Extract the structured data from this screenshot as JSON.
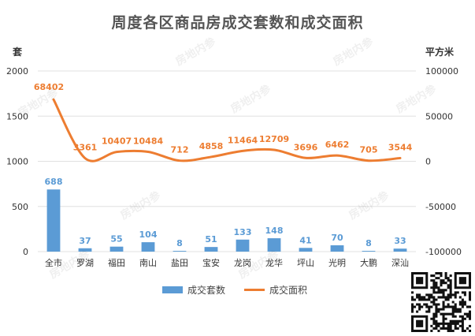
{
  "title": "周度各区商品房成交套数和成交面积",
  "left_unit": "套",
  "right_unit": "平方米",
  "watermark_text": "房地内参",
  "colors": {
    "bar": "#5B9BD5",
    "line": "#ED7D31",
    "bar_label": "#5B9BD5",
    "line_label": "#ED7D31",
    "axis_text": "#333333",
    "grid": "#E0E0E0"
  },
  "chart_data": {
    "type": "bar",
    "categories": [
      "全市",
      "罗湖",
      "福田",
      "南山",
      "盐田",
      "宝安",
      "龙岗",
      "龙华",
      "坪山",
      "光明",
      "大鹏",
      "深汕"
    ],
    "series": [
      {
        "name": "成交套数",
        "type": "bar",
        "axis": "left",
        "values": [
          688,
          37,
          55,
          104,
          8,
          51,
          133,
          148,
          41,
          70,
          8,
          33
        ]
      },
      {
        "name": "成交面积",
        "type": "line",
        "axis": "right",
        "values": [
          68402,
          3361,
          10407,
          10484,
          712,
          4858,
          11464,
          12709,
          3696,
          6462,
          705,
          3544
        ]
      }
    ],
    "y_left": {
      "min": 0,
      "max": 2000,
      "ticks": [
        0,
        500,
        1000,
        1500,
        2000
      ]
    },
    "y_right": {
      "min": -100000,
      "max": 100000,
      "ticks": [
        -100000,
        -50000,
        0,
        50000,
        100000
      ]
    },
    "grid": true,
    "legend": "bottom"
  }
}
